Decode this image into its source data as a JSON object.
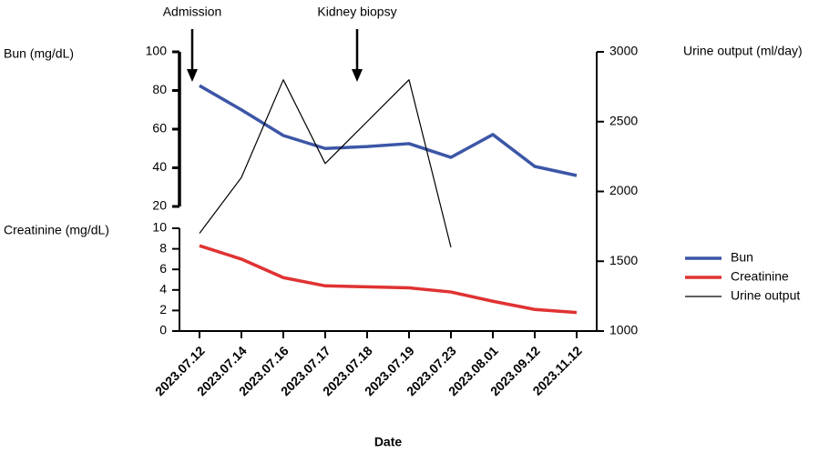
{
  "chart_data": {
    "type": "line",
    "axis_labels": {
      "y": "Bun (mg/dL)",
      "y_bottom": "Creatinine (mg/dL)",
      "y2": "Urine output (ml/day)",
      "x": "Date"
    },
    "annotations": [
      {
        "text": "Admission"
      },
      {
        "text": "Kidney biopsy"
      }
    ],
    "categories": [
      "2023.07.12",
      "2023.07.14",
      "2023.07.16",
      "2023.07.17",
      "2023.07.18",
      "2023.07.19",
      "2023.07.23",
      "2023.08.01",
      "2023.09.12",
      "2023.11.12"
    ],
    "series": [
      {
        "name": "Bun",
        "color": "#3c56a6",
        "axis": "y",
        "values": [
          82.5,
          70,
          56.7,
          50,
          51,
          52.5,
          45.4,
          57.2,
          40.7,
          36
        ]
      },
      {
        "name": "Creatinine",
        "color": "#e03232",
        "axis": "y_bottom",
        "values": [
          8.3,
          7,
          5.2,
          4.4,
          4.3,
          4.2,
          3.8,
          2.9,
          2.1,
          1.8
        ]
      },
      {
        "name": "Urine output",
        "color": "#000000",
        "axis": "y2",
        "values": [
          1700,
          2100,
          2800,
          2200,
          2500,
          2800,
          1600,
          null,
          null,
          null
        ]
      }
    ],
    "ylim": [
      20,
      100
    ],
    "yticks": [
      20,
      40,
      60,
      80,
      100
    ],
    "y_bottom_lim": [
      0,
      10
    ],
    "y_bottom_ticks": [
      0,
      2,
      4,
      6,
      8,
      10
    ],
    "y2lim": [
      1000,
      3000
    ],
    "y2ticks": [
      1000,
      1500,
      2000,
      2500,
      3000
    ],
    "grid": false,
    "legend": "right"
  }
}
